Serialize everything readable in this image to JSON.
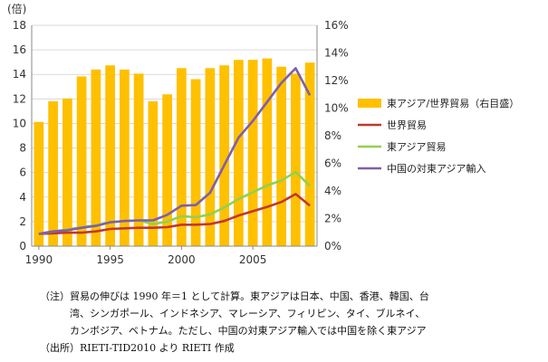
{
  "chart_data": {
    "type": "bar+line",
    "x": [
      1990,
      1991,
      1992,
      1993,
      1994,
      1995,
      1996,
      1997,
      1998,
      1999,
      2000,
      2001,
      2002,
      2003,
      2004,
      2005,
      2006,
      2007,
      2008,
      2009
    ],
    "x_ticks": [
      "1990",
      "1995",
      "2000",
      "2005"
    ],
    "y_unit_label": "(倍)",
    "y_left_lim": [
      0,
      18
    ],
    "y_left_ticks": [
      "0",
      "2",
      "4",
      "6",
      "8",
      "10",
      "12",
      "14",
      "16",
      "18"
    ],
    "y_right_lim": [
      0,
      16
    ],
    "y_right_ticks": [
      "0%",
      "2%",
      "4%",
      "6%",
      "8%",
      "10%",
      "12%",
      "14%",
      "16%"
    ],
    "bar_series": {
      "name": "東アジア/世界貿易（右目盛）",
      "color": "#FFC000",
      "axis": "right",
      "values": [
        9.0,
        10.5,
        10.7,
        12.3,
        12.8,
        13.1,
        12.8,
        12.5,
        10.5,
        11.0,
        12.9,
        12.1,
        12.9,
        13.1,
        13.5,
        13.5,
        13.6,
        13.0,
        12.5,
        13.3
      ]
    },
    "line_series": [
      {
        "name": "世界貿易",
        "color": "#C0392B",
        "axis": "left",
        "values": [
          1.0,
          1.05,
          1.1,
          1.1,
          1.2,
          1.4,
          1.45,
          1.5,
          1.5,
          1.55,
          1.75,
          1.75,
          1.8,
          2.05,
          2.5,
          2.85,
          3.2,
          3.6,
          4.25,
          3.3
        ]
      },
      {
        "name": "東アジア貿易",
        "color": "#92D050",
        "axis": "left",
        "values": [
          1.0,
          1.2,
          1.35,
          1.55,
          1.7,
          1.95,
          2.05,
          2.1,
          1.8,
          2.0,
          2.45,
          2.35,
          2.6,
          3.15,
          3.85,
          4.4,
          4.95,
          5.35,
          6.05,
          4.9
        ]
      },
      {
        "name": "中国の対東アジア輸入",
        "color": "#7F5FA8",
        "axis": "left",
        "values": [
          1.0,
          1.2,
          1.3,
          1.5,
          1.65,
          1.95,
          2.05,
          2.1,
          2.1,
          2.55,
          3.3,
          3.35,
          4.35,
          6.6,
          8.85,
          10.2,
          11.75,
          13.3,
          14.5,
          12.3
        ]
      }
    ],
    "legend_position": "right"
  },
  "notes": {
    "line1": "（注）貿易の伸びは 1990 年＝1 として計算。東アジアは日本、中国、香港、韓国、台",
    "line2": "湾、シンガポール、インドネシア、マレーシア、フィリピン、タイ、ブルネイ、",
    "line3": "カンボジア、ベトナム。ただし、中国の対東アジア輸入では中国を除く東アジア",
    "line4": "（出所）RIETI-TID2010 より RIETI 作成"
  }
}
